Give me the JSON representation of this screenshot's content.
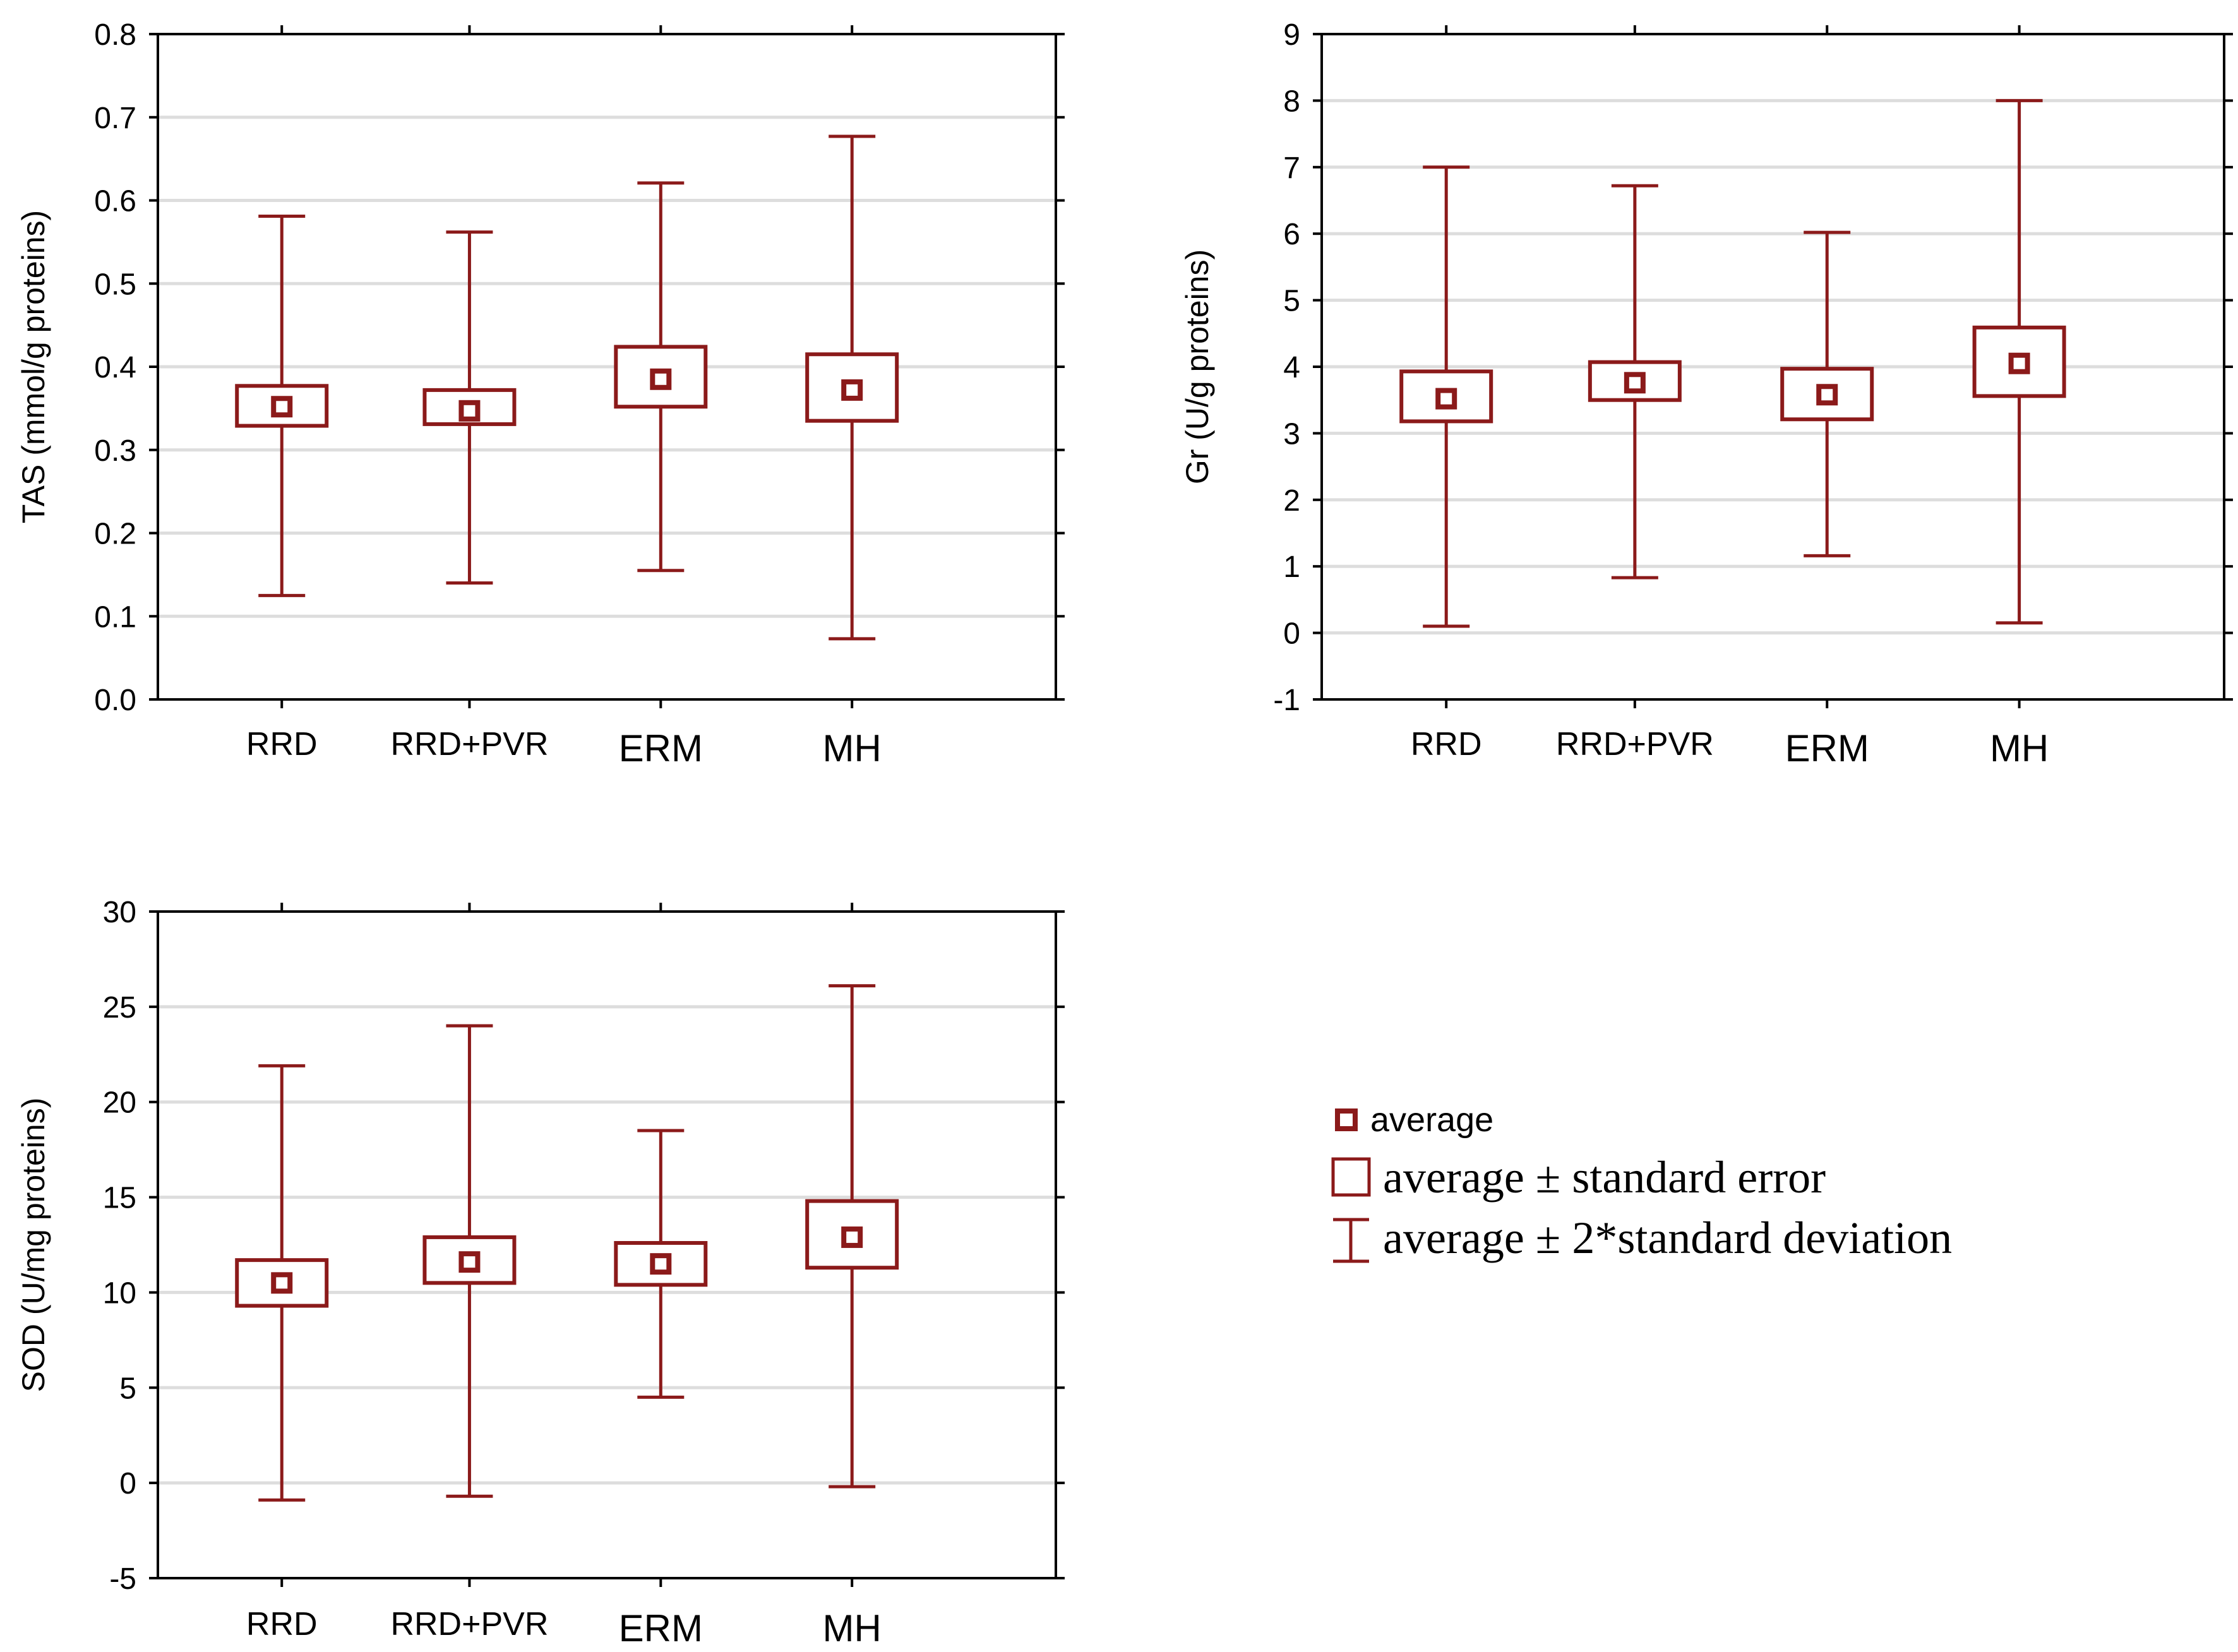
{
  "colors": {
    "series": "#8b1a1a",
    "grid": "#dddddd",
    "axis": "#000000"
  },
  "chart_data": [
    {
      "type": "boxplot",
      "ylabel": "TAS (mmol/g proteins)",
      "ylim": [
        0.0,
        0.8
      ],
      "yticks": [
        "0.0",
        "0.1",
        "0.2",
        "0.3",
        "0.4",
        "0.5",
        "0.6",
        "0.7",
        "0.8"
      ],
      "categories": [
        "RRD",
        "RRD+PVR",
        "ERM",
        "MH"
      ],
      "series": [
        {
          "category": "RRD",
          "mean": 0.352,
          "se_low": 0.329,
          "se_high": 0.377,
          "sd2_low": 0.125,
          "sd2_high": 0.581
        },
        {
          "category": "RRD+PVR",
          "mean": 0.347,
          "se_low": 0.331,
          "se_high": 0.372,
          "sd2_low": 0.14,
          "sd2_high": 0.562
        },
        {
          "category": "ERM",
          "mean": 0.385,
          "se_low": 0.352,
          "se_high": 0.424,
          "sd2_low": 0.155,
          "sd2_high": 0.621
        },
        {
          "category": "MH",
          "mean": 0.372,
          "se_low": 0.335,
          "se_high": 0.415,
          "sd2_low": 0.073,
          "sd2_high": 0.677
        }
      ]
    },
    {
      "type": "boxplot",
      "ylabel": "Gr (U/g proteins)",
      "ylim": [
        -1,
        9
      ],
      "yticks": [
        "-1",
        "0",
        "1",
        "2",
        "3",
        "4",
        "5",
        "6",
        "7",
        "8",
        "9"
      ],
      "categories": [
        "RRD",
        "RRD+PVR",
        "ERM",
        "MH"
      ],
      "series": [
        {
          "category": "RRD",
          "mean": 3.52,
          "se_low": 3.18,
          "se_high": 3.93,
          "sd2_low": 0.1,
          "sd2_high": 7.0
        },
        {
          "category": "RRD+PVR",
          "mean": 3.76,
          "se_low": 3.5,
          "se_high": 4.07,
          "sd2_low": 0.83,
          "sd2_high": 6.72
        },
        {
          "category": "ERM",
          "mean": 3.58,
          "se_low": 3.21,
          "se_high": 3.97,
          "sd2_low": 1.16,
          "sd2_high": 6.02
        },
        {
          "category": "MH",
          "mean": 4.05,
          "se_low": 3.56,
          "se_high": 4.59,
          "sd2_low": 0.15,
          "sd2_high": 8.0
        }
      ]
    },
    {
      "type": "boxplot",
      "ylabel": "SOD (U/mg proteins)",
      "ylim": [
        -5,
        30
      ],
      "yticks": [
        "-5",
        "0",
        "5",
        "10",
        "15",
        "20",
        "25",
        "30"
      ],
      "categories": [
        "RRD",
        "RRD+PVR",
        "ERM",
        "MH"
      ],
      "series": [
        {
          "category": "RRD",
          "mean": 10.5,
          "se_low": 9.3,
          "se_high": 11.7,
          "sd2_low": -0.9,
          "sd2_high": 21.9
        },
        {
          "category": "RRD+PVR",
          "mean": 11.6,
          "se_low": 10.5,
          "se_high": 12.9,
          "sd2_low": -0.7,
          "sd2_high": 24.0
        },
        {
          "category": "ERM",
          "mean": 11.5,
          "se_low": 10.4,
          "se_high": 12.6,
          "sd2_low": 4.5,
          "sd2_high": 18.5
        },
        {
          "category": "MH",
          "mean": 12.9,
          "se_low": 11.3,
          "se_high": 14.8,
          "sd2_low": -0.2,
          "sd2_high": 26.1
        }
      ]
    }
  ],
  "legend": {
    "items": [
      {
        "symbol": "average-marker",
        "label": "average"
      },
      {
        "symbol": "se-box",
        "label": "average ± standard error"
      },
      {
        "symbol": "sd-whisker",
        "label": "average ± 2*standard deviation"
      }
    ]
  }
}
